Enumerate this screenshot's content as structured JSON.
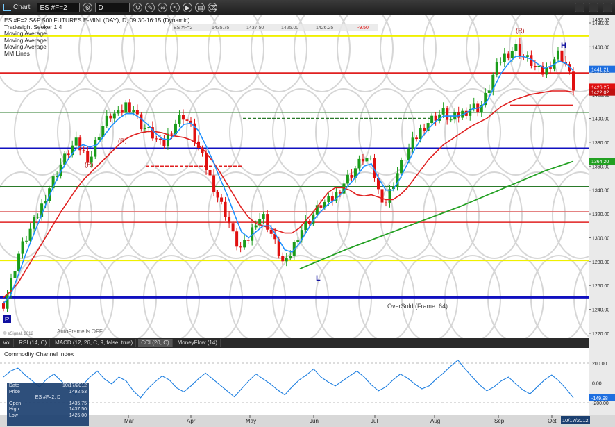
{
  "toolbar": {
    "title": "Chart",
    "symbol": "ES #F=2",
    "interval": "D"
  },
  "legend": {
    "line1": "ES #F=2,S&P 500 FUTURES E-MINI (DAY), D, 09:30-16:15 (Dynamic)",
    "line2": "Tradesight Seeker 1.4",
    "line3": "Moving Average",
    "line4": "Moving Average",
    "line5": "Moving Average",
    "line6": "MM Lines"
  },
  "quote_strip": {
    "symbol": "ES #F=2",
    "open": "1435.75",
    "high": "1437.50",
    "low": "1425.00",
    "last": "1426.25",
    "chg": "-9.50"
  },
  "price_axis": {
    "ticks": [
      "1480.00",
      "1460.00",
      "1440.00",
      "1420.00",
      "1400.00",
      "1380.00",
      "1360.00",
      "1340.00",
      "1320.00",
      "1300.00",
      "1280.00",
      "1260.00",
      "1240.00",
      "1220.00"
    ],
    "top_label": "1492.53",
    "tag1": "1441.21",
    "tag2": "1426.25",
    "tag3": "1422.02",
    "tag4": "1364.20"
  },
  "months": [
    "Mar",
    "Apr",
    "May",
    "Jun",
    "Jul",
    "Aug",
    "Sep",
    "Oct"
  ],
  "date_tag": "10/17/2012",
  "annotations": {
    "r1": "(R)",
    "r2": "(R)",
    "r3": "(R)",
    "h": "H",
    "l": "L",
    "p": "P",
    "oversold": "OverSold (Frame: 64)",
    "autoframe": "AutoFrame is OFF",
    "copyright": "© eSignal, 2012"
  },
  "pane_tabs": [
    "Vol",
    "RSI (14, C)",
    "MACD (12, 26, C, 9, false, true)",
    "CCI (20, C)",
    "MoneyFlow (14)"
  ],
  "cci": {
    "title": "Commodity Channel Index",
    "ticks": [
      "200.00",
      "0.00",
      "-200.00"
    ],
    "tag": "-149.98"
  },
  "infobox": {
    "date_label": "Date",
    "date": "10/17/2012",
    "price_label": "Price",
    "price": "1492.53",
    "symbol": "ES #F=2, D",
    "open_label": "Open",
    "open": "1435.75",
    "high_label": "High",
    "high": "1437.50",
    "low_label": "Low",
    "low": "1425.00"
  },
  "colors": {
    "up": "#1a9c1a",
    "down": "#e01010",
    "ma_blue": "#1e90ff",
    "ma_red": "#e02020",
    "ma_green": "#22a022",
    "mm_blue": "#1010c0",
    "mm_yellow": "#f0f000"
  },
  "chart_data": {
    "type": "candlestick",
    "symbol": "ES #F=2",
    "ylim": [
      1220,
      1492.53
    ],
    "x_months": [
      "Mar",
      "Apr",
      "May",
      "Jun",
      "Jul",
      "Aug",
      "Sep",
      "Oct"
    ],
    "mm_lines": [
      1469,
      1438,
      1405,
      1375,
      1343,
      1322,
      1313,
      1281,
      1250
    ],
    "price_path": [
      1245,
      1262,
      1285,
      1298,
      1310,
      1322,
      1338,
      1350,
      1362,
      1372,
      1380,
      1372,
      1365,
      1385,
      1396,
      1404,
      1402,
      1412,
      1408,
      1395,
      1390,
      1384,
      1375,
      1388,
      1398,
      1403,
      1392,
      1375,
      1360,
      1345,
      1330,
      1318,
      1298,
      1290,
      1300,
      1315,
      1318,
      1305,
      1290,
      1275,
      1290,
      1305,
      1312,
      1320,
      1328,
      1330,
      1335,
      1345,
      1352,
      1360,
      1368,
      1362,
      1338,
      1330,
      1345,
      1360,
      1372,
      1382,
      1392,
      1398,
      1402,
      1405,
      1398,
      1402,
      1406,
      1410,
      1408,
      1420,
      1438,
      1450,
      1455,
      1460,
      1452,
      1448,
      1440,
      1438,
      1448,
      1455,
      1445,
      1426
    ],
    "ma_fast_path": [
      1245,
      1252,
      1268,
      1285,
      1300,
      1315,
      1330,
      1344,
      1356,
      1366,
      1374,
      1378,
      1376,
      1378,
      1386,
      1394,
      1400,
      1404,
      1404,
      1400,
      1395,
      1388,
      1383,
      1382,
      1388,
      1395,
      1396,
      1390,
      1378,
      1365,
      1350,
      1336,
      1320,
      1305,
      1300,
      1305,
      1310,
      1310,
      1300,
      1290,
      1288,
      1295,
      1305,
      1315,
      1322,
      1328,
      1332,
      1338,
      1345,
      1352,
      1360,
      1362,
      1350,
      1340,
      1340,
      1350,
      1362,
      1374,
      1384,
      1392,
      1398,
      1402,
      1402,
      1402,
      1404,
      1408,
      1409,
      1414,
      1426,
      1438,
      1446,
      1452,
      1452,
      1450,
      1446,
      1442,
      1444,
      1448,
      1446,
      1440
    ],
    "ma_mid_path": [
      1250,
      1255,
      1262,
      1272,
      1282,
      1292,
      1302,
      1312,
      1322,
      1331,
      1340,
      1348,
      1354,
      1360,
      1366,
      1372,
      1378,
      1383,
      1386,
      1388,
      1389,
      1389,
      1388,
      1386,
      1385,
      1384,
      1382,
      1378,
      1372,
      1364,
      1355,
      1345,
      1335,
      1325,
      1317,
      1312,
      1310,
      1308,
      1306,
      1304,
      1304,
      1308,
      1315,
      1322,
      1330,
      1338,
      1342,
      1342,
      1340,
      1336,
      1335,
      1336,
      1334,
      1332,
      1332,
      1336,
      1342,
      1350,
      1358,
      1366,
      1372,
      1378,
      1382,
      1386,
      1390,
      1394,
      1397,
      1400,
      1405,
      1410,
      1413,
      1416,
      1418,
      1420,
      1421,
      1422,
      1423,
      1423,
      1423,
      1422
    ],
    "ma_slow_path": [
      [
        0.52,
        1274
      ],
      [
        0.6,
        1290
      ],
      [
        0.7,
        1308
      ],
      [
        0.8,
        1326
      ],
      [
        0.88,
        1342
      ],
      [
        0.95,
        1356
      ],
      [
        1.0,
        1364
      ]
    ],
    "cci_path": [
      60,
      120,
      150,
      80,
      20,
      -40,
      40,
      90,
      20,
      -60,
      -120,
      -20,
      60,
      120,
      40,
      -10,
      60,
      20,
      -80,
      -150,
      -60,
      10,
      70,
      30,
      -50,
      -90,
      -30,
      40,
      100,
      40,
      -20,
      -80,
      -140,
      -60,
      20,
      90,
      40,
      -10,
      -70,
      -120,
      -40,
      30,
      80,
      140,
      60,
      10,
      -30,
      20,
      70,
      120,
      60,
      -20,
      -80,
      -40,
      30,
      90,
      50,
      -10,
      -60,
      -30,
      40,
      100,
      170,
      230,
      140,
      60,
      -20,
      -80,
      -40,
      20,
      60,
      -10,
      -70,
      -110,
      -40,
      30,
      80,
      20,
      -60,
      -150
    ],
    "cci_ticks": [
      200,
      0,
      -200
    ]
  }
}
